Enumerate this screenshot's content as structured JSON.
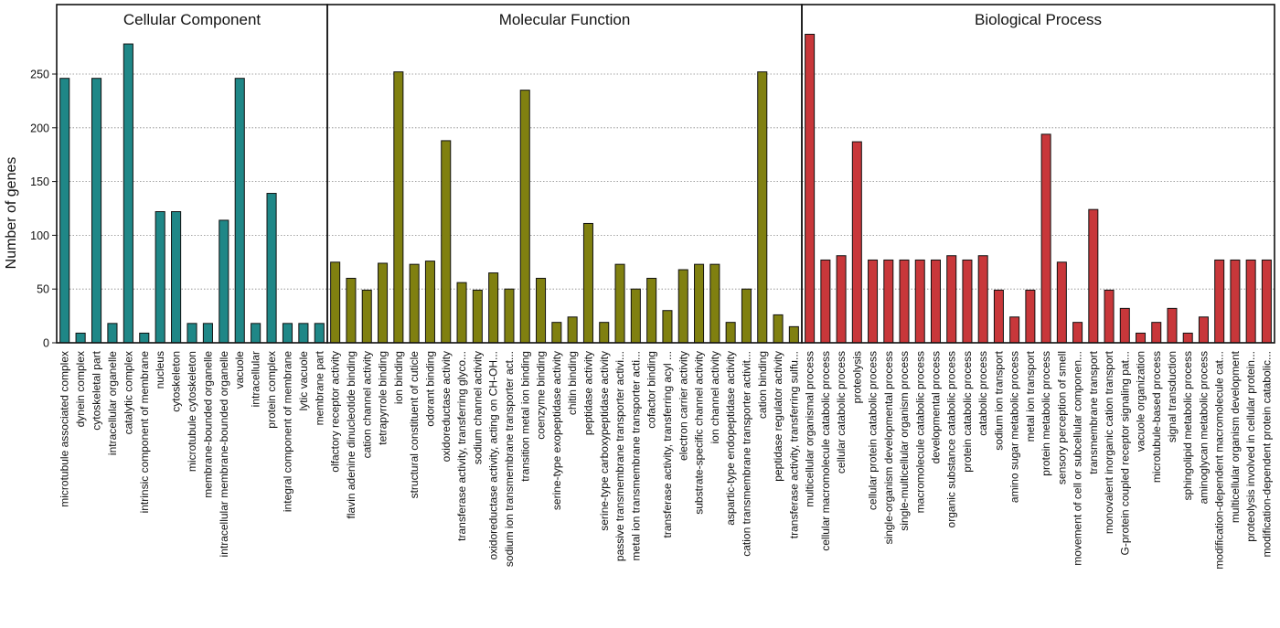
{
  "chart_data": {
    "type": "bar",
    "ylabel": "Number of genes",
    "ylim": [
      0,
      290
    ],
    "yticks": [
      0,
      50,
      100,
      150,
      200,
      250
    ],
    "grid": "horizontal-dotted",
    "panels": [
      {
        "title": "Cellular Component",
        "color": "#1f8787",
        "categories": [
          "microtubule associated complex",
          "dynein complex",
          "cytoskeletal part",
          "intracellular organelle",
          "catalytic complex",
          "intrinsic component of membrane",
          "nucleus",
          "cytoskeleton",
          "microtubule cytoskeleton",
          "membrane-bounded organelle",
          "intracellular membrane-bounded organelle",
          "vacuole",
          "intracellular",
          "protein complex",
          "integral component of membrane",
          "lytic vacuole",
          "membrane part"
        ],
        "values": [
          246,
          9,
          246,
          18,
          278,
          9,
          122,
          122,
          18,
          18,
          114,
          246,
          18,
          139,
          18,
          18,
          18
        ]
      },
      {
        "title": "Molecular Function",
        "color": "#808010",
        "categories": [
          "olfactory receptor activity",
          "flavin adenine dinucleotide binding",
          "cation channel activity",
          "tetrapyrrole binding",
          "ion binding",
          "structural constituent of cuticle",
          "odorant binding",
          "oxidoreductase activity",
          "transferase activity, transferring glyco...",
          "sodium channel activity",
          "oxidoreductase activity, acting on CH-OH...",
          "sodium ion transmembrane transporter act...",
          "transition metal ion binding",
          "coenzyme binding",
          "serine-type exopeptidase activity",
          "chitin binding",
          "peptidase activity",
          "serine-type carboxypeptidase activity",
          "passive transmembrane transporter activi...",
          "metal ion transmembrane transporter acti...",
          "cofactor binding",
          "transferase activity, transferring acyl ...",
          "electron carrier activity",
          "substrate-specific channel activity",
          "ion channel activity",
          "aspartic-type endopeptidase activity",
          "cation transmembrane transporter activit...",
          "cation binding",
          "peptidase regulator activity",
          "transferase activity, transferring sulfu..."
        ],
        "values": [
          75,
          60,
          49,
          74,
          252,
          73,
          76,
          188,
          56,
          49,
          65,
          50,
          235,
          60,
          19,
          24,
          111,
          19,
          73,
          50,
          60,
          30,
          68,
          73,
          73,
          19,
          50,
          252,
          26,
          15
        ]
      },
      {
        "title": "Biological Process",
        "color": "#c8373a",
        "categories": [
          "multicellular organismal process",
          "cellular macromolecule catabolic process",
          "cellular catabolic process",
          "proteolysis",
          "cellular protein catabolic process",
          "single-organism developmental process",
          "single-multicellular organism process",
          "macromolecule catabolic process",
          "developmental process",
          "organic substance catabolic process",
          "protein catabolic process",
          "catabolic process",
          "sodium ion transport",
          "amino sugar metabolic process",
          "metal ion transport",
          "protein metabolic process",
          "sensory perception of smell",
          "movement of cell or subcellular componen...",
          "transmembrane transport",
          "monovalent inorganic cation transport",
          "G-protein coupled receptor signaling pat...",
          "vacuole organization",
          "microtubule-based process",
          "signal transduction",
          "sphingolipid metabolic process",
          "aminoglycan metabolic process",
          "modification-dependent macromolecule cat...",
          "multicellular organism development",
          "proteolysis involved in cellular protein...",
          "modification-dependent protein catabolic..."
        ],
        "values": [
          287,
          77,
          81,
          187,
          77,
          77,
          77,
          77,
          77,
          81,
          77,
          81,
          49,
          24,
          49,
          194,
          75,
          19,
          124,
          49,
          32,
          9,
          19,
          32,
          9,
          24,
          77,
          77,
          77,
          77
        ]
      }
    ]
  }
}
